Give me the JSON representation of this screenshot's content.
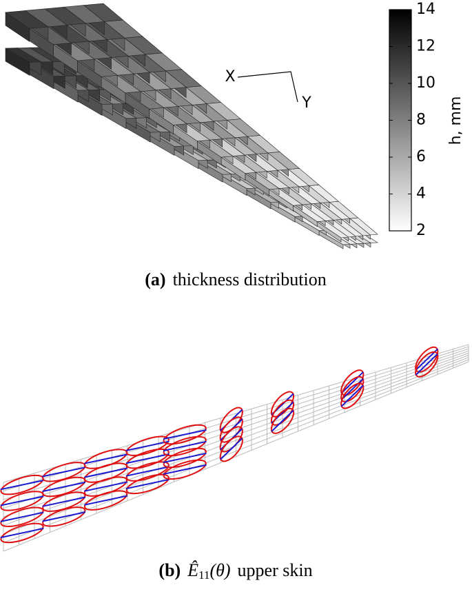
{
  "panel_a": {
    "caption_label": "(a)",
    "caption": "thickness distribution",
    "axis_labels": {
      "x": "X",
      "y": "Y"
    },
    "colorbar": {
      "label": "h, mm",
      "lim": [
        2,
        14
      ],
      "ticks": [
        2,
        4,
        6,
        8,
        10,
        12,
        14
      ]
    }
  },
  "panel_b": {
    "caption_label": "(b)",
    "symbol": "Ê",
    "subscript": "11",
    "argument": "(θ)",
    "caption": "upper skin"
  }
}
